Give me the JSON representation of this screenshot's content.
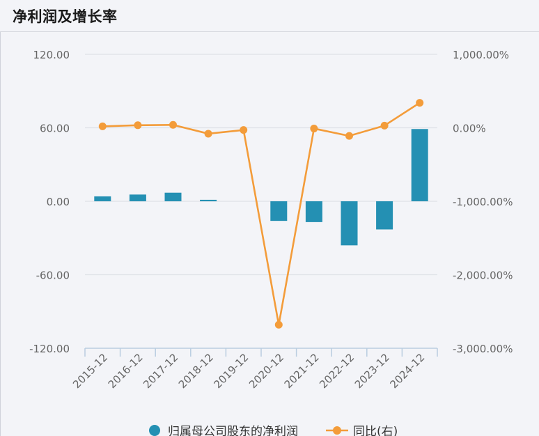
{
  "title": "净利润及增长率",
  "chart_data": {
    "type": "bar+line",
    "categories": [
      "2015-12",
      "2016-12",
      "2017-12",
      "2018-12",
      "2019-12",
      "2020-12",
      "2021-12",
      "2022-12",
      "2023-12",
      "2024-12"
    ],
    "series": [
      {
        "name": "归属母公司股东的净利润",
        "type": "bar",
        "axis": "left",
        "color": "#2490b3",
        "values": [
          4.0,
          5.5,
          7.0,
          1.2,
          0,
          -16.0,
          -17.0,
          -36.0,
          -23.0,
          59.0
        ]
      },
      {
        "name": "同比(右)",
        "type": "line",
        "axis": "right",
        "color": "#f39c3a",
        "values": [
          20,
          35,
          40,
          -80,
          -30,
          -2680,
          -10,
          -110,
          30,
          340
        ]
      }
    ],
    "yleft": {
      "lim": [
        -120,
        120
      ],
      "ticks": [
        "120.00",
        "60.00",
        "0.00",
        "-60.00",
        "-120.00"
      ]
    },
    "yright": {
      "lim": [
        -3000,
        1000
      ],
      "ticks": [
        "1,000.00%",
        "0.00%",
        "-1,000.00%",
        "-2,000.00%",
        "-3,000.00%"
      ]
    },
    "grid": true,
    "legend_position": "bottom"
  }
}
